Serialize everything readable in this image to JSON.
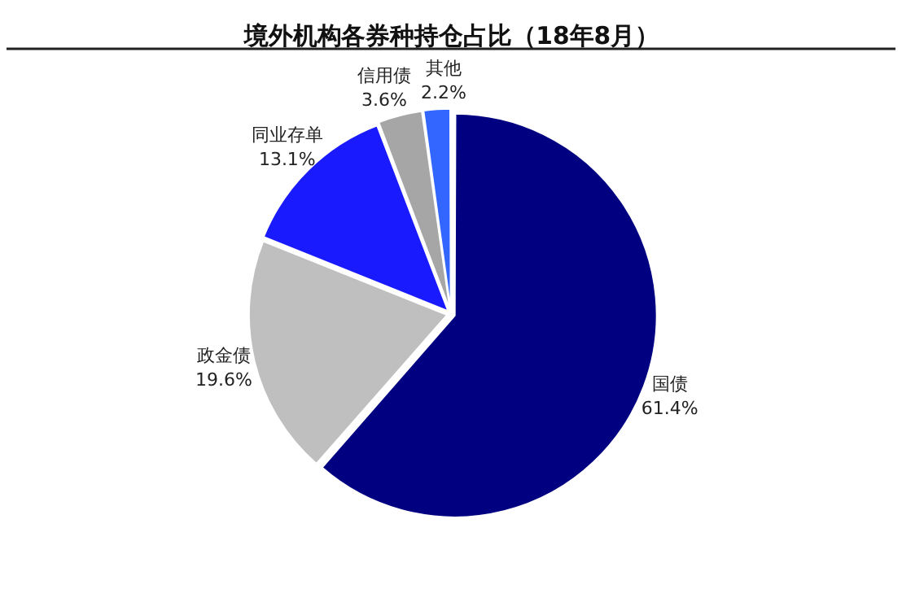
{
  "chart_data": {
    "type": "pie",
    "title": "境外机构各券种持仓占比（18年8月）",
    "categories": [
      "国债",
      "政金债",
      "同业存单",
      "信用债",
      "其他"
    ],
    "values": [
      61.4,
      19.6,
      13.1,
      3.6,
      2.2
    ],
    "value_labels": [
      "61.4%",
      "19.6%",
      "13.1%",
      "3.6%",
      "2.2%"
    ],
    "colors": [
      "#000080",
      "#bfbfbf",
      "#1a1aff",
      "#a6a6a6",
      "#3366ff"
    ],
    "legend": false
  }
}
